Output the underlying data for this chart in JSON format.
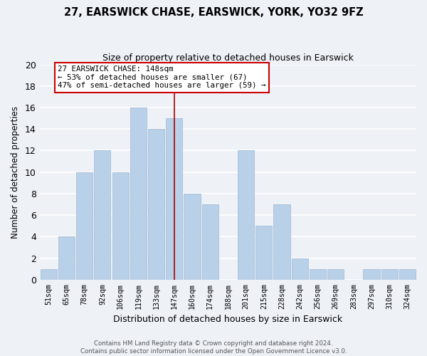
{
  "title": "27, EARSWICK CHASE, EARSWICK, YORK, YO32 9FZ",
  "subtitle": "Size of property relative to detached houses in Earswick",
  "xlabel": "Distribution of detached houses by size in Earswick",
  "ylabel": "Number of detached properties",
  "bar_labels": [
    "51sqm",
    "65sqm",
    "78sqm",
    "92sqm",
    "106sqm",
    "119sqm",
    "133sqm",
    "147sqm",
    "160sqm",
    "174sqm",
    "188sqm",
    "201sqm",
    "215sqm",
    "228sqm",
    "242sqm",
    "256sqm",
    "269sqm",
    "283sqm",
    "297sqm",
    "310sqm",
    "324sqm"
  ],
  "bar_values": [
    1,
    4,
    10,
    12,
    10,
    16,
    14,
    15,
    8,
    7,
    0,
    12,
    5,
    7,
    2,
    1,
    1,
    0,
    1,
    1,
    1
  ],
  "bar_color": "#b8d0e8",
  "bar_edge_color": "#adc4dc",
  "marker_index": 7,
  "marker_line_color": "#aa0000",
  "ylim": [
    0,
    20
  ],
  "yticks": [
    0,
    2,
    4,
    6,
    8,
    10,
    12,
    14,
    16,
    18,
    20
  ],
  "annotation_title": "27 EARSWICK CHASE: 148sqm",
  "annotation_line1": "← 53% of detached houses are smaller (67)",
  "annotation_line2": "47% of semi-detached houses are larger (59) →",
  "annotation_box_color": "#ffffff",
  "annotation_box_edge": "#cc0000",
  "background_color": "#eef2f7",
  "grid_color": "#ffffff",
  "footer_line1": "Contains HM Land Registry data © Crown copyright and database right 2024.",
  "footer_line2": "Contains public sector information licensed under the Open Government Licence v3.0."
}
